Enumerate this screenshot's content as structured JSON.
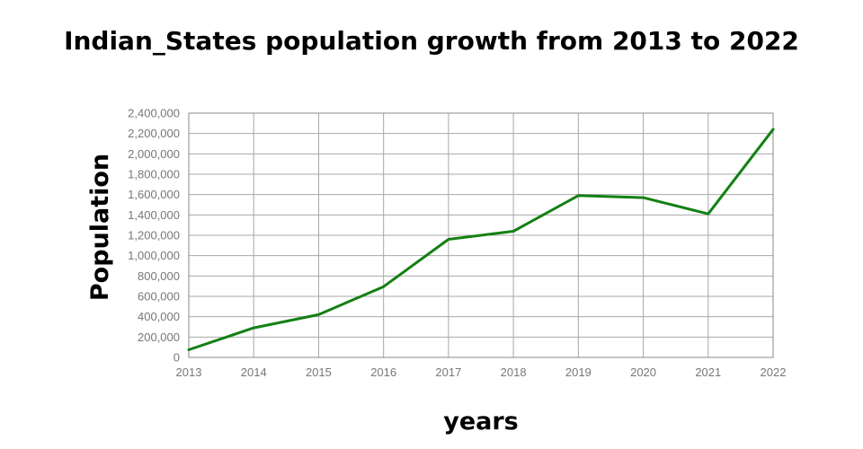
{
  "chart_data": {
    "type": "line",
    "title": "Indian_States population growth from 2013 to 2022",
    "xlabel": "years",
    "ylabel": "Population",
    "x": [
      "2013",
      "2014",
      "2015",
      "2016",
      "2017",
      "2018",
      "2019",
      "2020",
      "2021",
      "2022"
    ],
    "series": [
      {
        "name": "Population",
        "color": "#138013",
        "values": [
          75000,
          290000,
          420000,
          695000,
          1160000,
          1240000,
          1590000,
          1570000,
          1410000,
          2240000
        ]
      }
    ],
    "ylim": [
      0,
      2400000
    ],
    "yticks": [
      0,
      200000,
      400000,
      600000,
      800000,
      1000000,
      1200000,
      1400000,
      1600000,
      1800000,
      2000000,
      2200000,
      2400000
    ],
    "ytick_labels": [
      "0",
      "200,000",
      "400,000",
      "600,000",
      "800,000",
      "1,000,000",
      "1,200,000",
      "1,400,000",
      "1,600,000",
      "1,800,000",
      "2,000,000",
      "2,200,000",
      "2,400,000"
    ],
    "grid": true,
    "legend": "none"
  }
}
